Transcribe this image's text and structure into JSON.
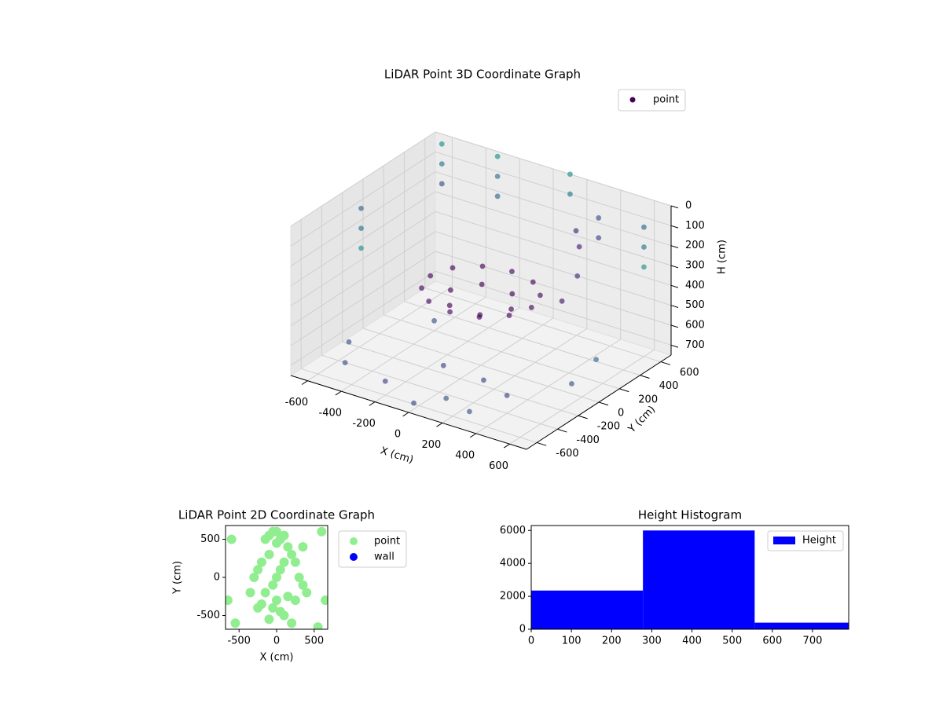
{
  "chart_data": [
    {
      "type": "scatter3d",
      "title": "LiDAR Point 3D Coordinate Graph",
      "x_label": "X (cm)",
      "y_label": "Y (cm)",
      "z_label": "H (cm)",
      "xlim": [
        -700,
        700
      ],
      "xticks": [
        -600,
        -400,
        -200,
        0,
        200,
        400,
        600
      ],
      "ylim": [
        -700,
        700
      ],
      "yticks": [
        -600,
        -400,
        -200,
        0,
        200,
        400,
        600
      ],
      "zlim": [
        750,
        0
      ],
      "zticks": [
        0,
        100,
        200,
        300,
        400,
        500,
        600,
        700
      ],
      "grid": true,
      "legend": "upper right",
      "alpha": 0.65,
      "series": [
        {
          "name": "point",
          "color": "#440154",
          "x": [
            300,
            260,
            150,
            0,
            -150,
            -260,
            -300,
            -260,
            -150,
            0,
            150,
            260,
            180,
            90,
            -90,
            -180,
            -90,
            90,
            400,
            450,
            420,
            350,
            -600,
            -600,
            -600,
            -300,
            -300,
            -300,
            600,
            600,
            600,
            -650,
            -650,
            -650,
            100,
            100,
            300,
            300,
            -500,
            -200,
            100,
            400,
            600,
            500,
            -400,
            -100,
            200,
            -600,
            0,
            300
          ],
          "y": [
            0,
            150,
            260,
            300,
            260,
            150,
            0,
            -150,
            -260,
            -300,
            -260,
            -150,
            0,
            156,
            156,
            0,
            -156,
            -156,
            300,
            200,
            100,
            350,
            600,
            600,
            600,
            650,
            650,
            650,
            600,
            600,
            600,
            -100,
            -100,
            -100,
            700,
            700,
            650,
            650,
            -500,
            -600,
            -500,
            -400,
            -100,
            300,
            200,
            -200,
            -300,
            -300,
            -650,
            -600
          ],
          "z": [
            380,
            380,
            380,
            380,
            380,
            380,
            380,
            380,
            380,
            380,
            380,
            380,
            420,
            420,
            420,
            420,
            420,
            420,
            150,
            250,
            350,
            100,
            0,
            100,
            200,
            0,
            100,
            200,
            100,
            200,
            300,
            100,
            200,
            300,
            0,
            100,
            150,
            250,
            700,
            680,
            720,
            660,
            650,
            690,
            700,
            710,
            670,
            690,
            720,
            700
          ],
          "colors": [
            "#46085c",
            "#46085c",
            "#46085c",
            "#46085c",
            "#46085c",
            "#46085c",
            "#46085c",
            "#46085c",
            "#46085c",
            "#46085c",
            "#46085c",
            "#46085c",
            "#440154",
            "#440154",
            "#440154",
            "#440154",
            "#440154",
            "#440154",
            "#482173",
            "#472d7b",
            "#481a6c",
            "#482878",
            "#21918c",
            "#2a788e",
            "#3b528b",
            "#21918c",
            "#2a788e",
            "#31688e",
            "#31688e",
            "#2a788e",
            "#21918c",
            "#31688e",
            "#2a788e",
            "#21918c",
            "#21918c",
            "#2a788e",
            "#3b528b",
            "#414487",
            "#3b528b",
            "#414487",
            "#3b528b",
            "#414487",
            "#3b528b",
            "#31688e",
            "#3b528b",
            "#414487",
            "#414487",
            "#3b528b",
            "#414487",
            "#3b528b"
          ]
        }
      ]
    },
    {
      "type": "scatter",
      "title": "LiDAR Point 2D Coordinate Graph",
      "x_label": "X (cm)",
      "y_label": "Y (cm)",
      "xlim": [
        -680,
        680
      ],
      "xticks": [
        -500,
        0,
        500
      ],
      "ylim": [
        -680,
        680
      ],
      "yticks": [
        -500,
        0,
        500
      ],
      "legend": "outside upper right",
      "series": [
        {
          "name": "point",
          "color": "#90ee90",
          "x": [
            -150,
            -100,
            -50,
            0,
            50,
            100,
            150,
            200,
            250,
            -200,
            -250,
            -300,
            300,
            350,
            -150,
            0,
            150,
            -50,
            50,
            100,
            -100,
            200,
            -200,
            0,
            250,
            -250,
            100,
            -100,
            350,
            -350,
            0,
            50,
            -50,
            -650,
            -600,
            650,
            600,
            -550,
            550,
            400
          ],
          "y": [
            500,
            550,
            600,
            450,
            500,
            550,
            400,
            300,
            200,
            200,
            100,
            0,
            0,
            -100,
            -200,
            -300,
            -250,
            -400,
            -450,
            -500,
            -550,
            -600,
            -350,
            600,
            -300,
            -400,
            200,
            300,
            400,
            -200,
            0,
            100,
            -100,
            -300,
            500,
            -300,
            600,
            -600,
            -650,
            -200
          ]
        },
        {
          "name": "wall",
          "color": "#0000ff",
          "x": [],
          "y": []
        }
      ]
    },
    {
      "type": "histogram",
      "title": "Height Histogram",
      "bins": [
        0,
        278,
        556,
        834
      ],
      "counts": [
        2350,
        6000,
        400
      ],
      "xlim": [
        0,
        790
      ],
      "xticks": [
        0,
        100,
        200,
        300,
        400,
        500,
        600,
        700
      ],
      "ylim": [
        0,
        6300
      ],
      "yticks": [
        0,
        2000,
        4000,
        6000
      ],
      "legend": "upper right",
      "series": [
        {
          "name": "Height",
          "color": "#0000ff"
        }
      ]
    }
  ]
}
